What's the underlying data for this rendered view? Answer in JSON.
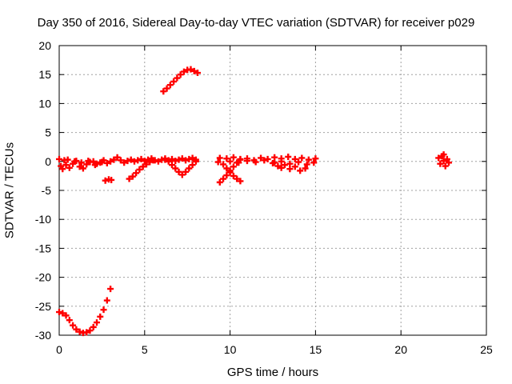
{
  "chart_data": {
    "type": "scatter",
    "title": "Day 350 of 2016, Sidereal Day-to-day VTEC variation (SDTVAR) for receiver p029",
    "xlabel": "GPS time / hours",
    "ylabel": "SDTVAR / TECUs",
    "xlim": [
      0,
      25
    ],
    "ylim": [
      -30,
      20
    ],
    "xticks": [
      0,
      5,
      10,
      15,
      20,
      25
    ],
    "yticks": [
      -30,
      -25,
      -20,
      -15,
      -10,
      -5,
      0,
      5,
      10,
      15,
      20
    ],
    "grid": true,
    "marker": "plus",
    "color": "#ff0000",
    "series": [
      {
        "points": [
          [
            0.0,
            -26.0
          ],
          [
            0.2,
            -26.2
          ],
          [
            0.4,
            -26.6
          ],
          [
            0.6,
            -27.4
          ],
          [
            0.8,
            -28.3
          ],
          [
            1.0,
            -29.0
          ],
          [
            1.2,
            -29.4
          ],
          [
            1.4,
            -29.6
          ],
          [
            1.6,
            -29.5
          ],
          [
            1.8,
            -29.2
          ],
          [
            2.0,
            -28.6
          ],
          [
            2.2,
            -27.8
          ],
          [
            2.4,
            -26.8
          ],
          [
            2.6,
            -25.6
          ],
          [
            2.8,
            -24.0
          ],
          [
            3.0,
            -22.0
          ],
          [
            6.1,
            12.1
          ],
          [
            6.3,
            12.6
          ],
          [
            6.5,
            13.2
          ],
          [
            6.7,
            13.8
          ],
          [
            6.9,
            14.4
          ],
          [
            7.1,
            15.0
          ],
          [
            7.3,
            15.5
          ],
          [
            7.5,
            15.8
          ],
          [
            7.7,
            15.9
          ],
          [
            7.9,
            15.6
          ],
          [
            8.1,
            15.3
          ],
          [
            0.0,
            0.4
          ],
          [
            0.1,
            -0.8
          ],
          [
            0.2,
            -1.3
          ],
          [
            0.3,
            0.2
          ],
          [
            0.4,
            -0.6
          ],
          [
            0.6,
            -1.1
          ],
          [
            0.8,
            -0.4
          ],
          [
            1.0,
            0.1
          ],
          [
            1.2,
            -0.9
          ],
          [
            1.4,
            -1.2
          ],
          [
            1.6,
            -0.5
          ],
          [
            1.8,
            -0.1
          ],
          [
            2.0,
            0.0
          ],
          [
            2.2,
            -0.4
          ],
          [
            2.4,
            -0.2
          ],
          [
            2.6,
            0.2
          ],
          [
            2.8,
            -0.3
          ],
          [
            3.0,
            0.0
          ],
          [
            3.2,
            0.3
          ],
          [
            3.4,
            0.7
          ],
          [
            3.6,
            0.2
          ],
          [
            3.8,
            -0.2
          ],
          [
            4.0,
            0.1
          ],
          [
            4.2,
            0.3
          ],
          [
            4.4,
            0.0
          ],
          [
            4.6,
            0.2
          ],
          [
            4.8,
            0.4
          ],
          [
            5.0,
            0.1
          ],
          [
            5.2,
            0.3
          ],
          [
            5.4,
            0.5
          ],
          [
            5.6,
            0.2
          ],
          [
            5.8,
            0.0
          ],
          [
            6.0,
            0.3
          ],
          [
            6.2,
            0.5
          ],
          [
            6.4,
            0.2
          ],
          [
            6.6,
            0.4
          ],
          [
            6.8,
            0.1
          ],
          [
            7.0,
            0.3
          ],
          [
            7.2,
            0.5
          ],
          [
            7.4,
            0.2
          ],
          [
            7.6,
            0.4
          ],
          [
            7.8,
            0.6
          ],
          [
            8.0,
            0.3
          ],
          [
            0.5,
            0.3
          ],
          [
            0.9,
            0.0
          ],
          [
            1.3,
            -0.2
          ],
          [
            1.7,
            0.1
          ],
          [
            2.1,
            -0.6
          ],
          [
            2.5,
            -0.1
          ],
          [
            2.7,
            -3.3
          ],
          [
            2.9,
            -3.1
          ],
          [
            3.05,
            -3.2
          ],
          [
            4.1,
            -3.0
          ],
          [
            4.3,
            -2.6
          ],
          [
            4.5,
            -2.0
          ],
          [
            4.7,
            -1.4
          ],
          [
            4.9,
            -0.9
          ],
          [
            5.1,
            -0.5
          ],
          [
            5.3,
            -0.1
          ],
          [
            5.5,
            0.2
          ],
          [
            6.2,
            0.3
          ],
          [
            6.4,
            0.0
          ],
          [
            6.6,
            -0.6
          ],
          [
            6.8,
            -1.2
          ],
          [
            7.0,
            -1.8
          ],
          [
            7.2,
            -2.3
          ],
          [
            7.4,
            -1.8
          ],
          [
            7.6,
            -1.2
          ],
          [
            7.8,
            -0.6
          ],
          [
            8.0,
            0.0
          ],
          [
            9.3,
            -0.1
          ],
          [
            9.4,
            -3.6
          ],
          [
            9.6,
            -3.0
          ],
          [
            9.8,
            -2.4
          ],
          [
            10.0,
            -1.6
          ],
          [
            10.2,
            -0.9
          ],
          [
            10.4,
            -0.2
          ],
          [
            10.6,
            0.4
          ],
          [
            9.6,
            -0.5
          ],
          [
            9.8,
            -1.2
          ],
          [
            10.0,
            -1.9
          ],
          [
            10.2,
            -2.5
          ],
          [
            10.4,
            -3.0
          ],
          [
            10.6,
            -3.4
          ],
          [
            9.4,
            0.6
          ],
          [
            9.8,
            0.5
          ],
          [
            10.2,
            0.7
          ],
          [
            10.6,
            0.3
          ],
          [
            11.0,
            0.5
          ],
          [
            11.4,
            0.2
          ],
          [
            11.8,
            0.6
          ],
          [
            12.2,
            0.4
          ],
          [
            12.6,
            0.7
          ],
          [
            13.0,
            0.5
          ],
          [
            13.4,
            0.8
          ],
          [
            13.8,
            0.4
          ],
          [
            14.2,
            0.6
          ],
          [
            14.6,
            0.3
          ],
          [
            15.0,
            0.5
          ],
          [
            10.0,
            0.0
          ],
          [
            10.5,
            -0.2
          ],
          [
            11.0,
            0.1
          ],
          [
            11.5,
            -0.1
          ],
          [
            12.0,
            0.2
          ],
          [
            12.5,
            -0.3
          ],
          [
            13.0,
            0.0
          ],
          [
            13.5,
            -0.4
          ],
          [
            14.0,
            -0.1
          ],
          [
            14.5,
            -0.5
          ],
          [
            14.9,
            -0.2
          ],
          [
            12.6,
            -0.2
          ],
          [
            12.8,
            -0.8
          ],
          [
            13.0,
            -1.1
          ],
          [
            13.2,
            -0.6
          ],
          [
            13.5,
            -1.3
          ],
          [
            13.8,
            -0.9
          ],
          [
            14.1,
            -1.6
          ],
          [
            14.4,
            -1.2
          ],
          [
            22.2,
            0.6
          ],
          [
            22.3,
            -0.4
          ],
          [
            22.4,
            0.9
          ],
          [
            22.5,
            0.1
          ],
          [
            22.6,
            -0.8
          ],
          [
            22.7,
            0.4
          ],
          [
            22.8,
            -0.2
          ],
          [
            22.5,
            1.2
          ]
        ]
      }
    ]
  }
}
